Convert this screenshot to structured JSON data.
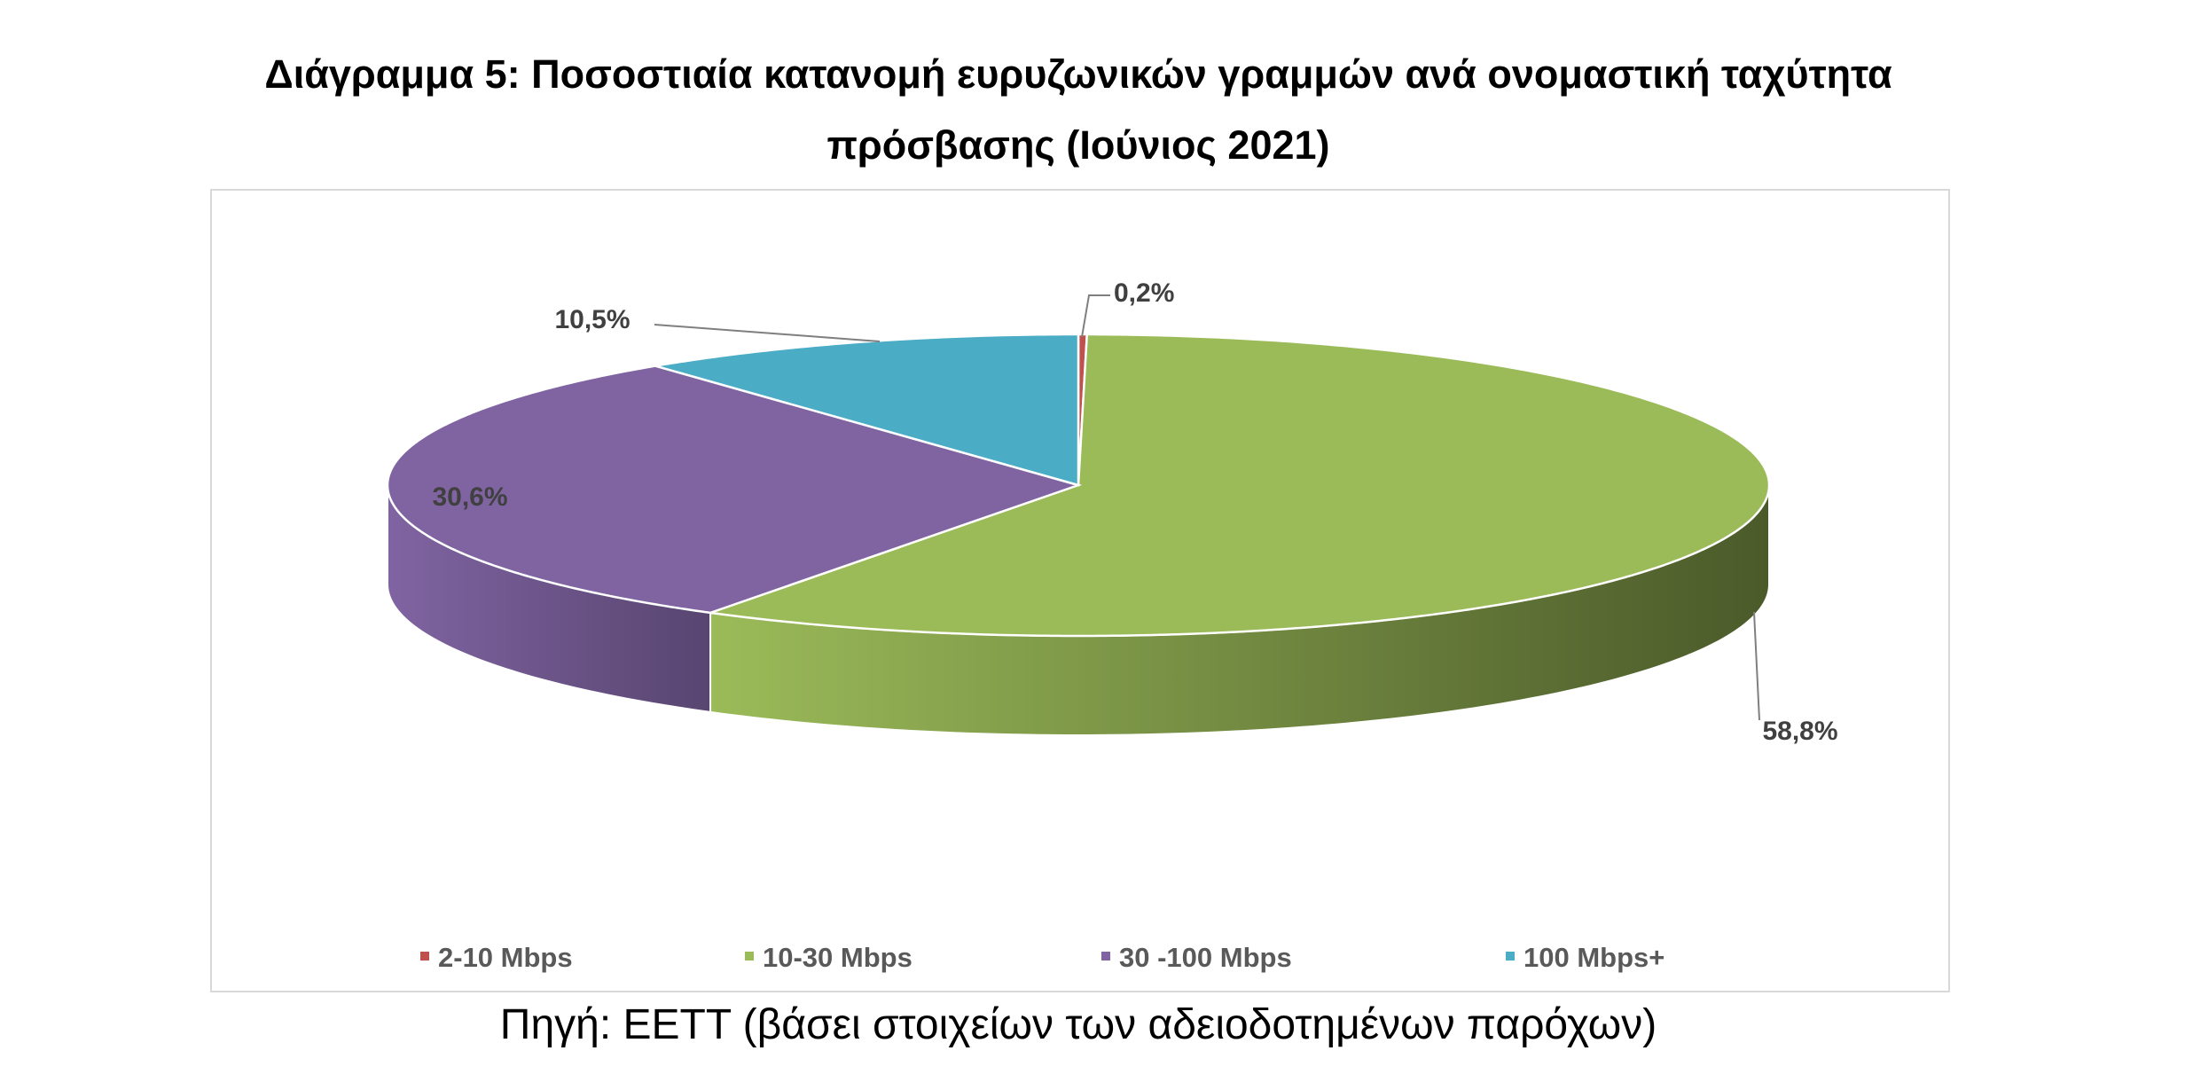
{
  "title_line1": "Διάγραμμα 5: Ποσοστιαία κατανομή ευρυζωνικών γραμμών ανά ονομαστική ταχύτητα",
  "title_line2": "πρόσβασης (Ιούνιος 2021)",
  "source": "Πηγή: ΕΕΤΤ (βάσει στοιχείων των αδειοδοτημένων παρόχων)",
  "chart_data": {
    "type": "pie",
    "style": "3d",
    "title": "Διάγραμμα 5: Ποσοστιαία κατανομή ευρυζωνικών γραμμών ανά ονομαστική ταχύτητα πρόσβασης (Ιούνιος 2021)",
    "legend_position": "bottom",
    "slices": [
      {
        "name": "2-10 Mbps",
        "value": 0.2,
        "label": "0,2%",
        "color": "#c0504d",
        "side": "#7a2f2d"
      },
      {
        "name": "10-30 Mbps",
        "value": 58.8,
        "label": "58,8%",
        "color": "#9bbb59",
        "side": "#4b5a2a"
      },
      {
        "name": "30 -100 Mbps",
        "value": 30.6,
        "label": "30,6%",
        "color": "#8064a2",
        "side": "#584570"
      },
      {
        "name": "100 Mbps+",
        "value": 10.5,
        "label": "10,5%",
        "color": "#4bacc6",
        "side": "#2f7387"
      }
    ]
  }
}
